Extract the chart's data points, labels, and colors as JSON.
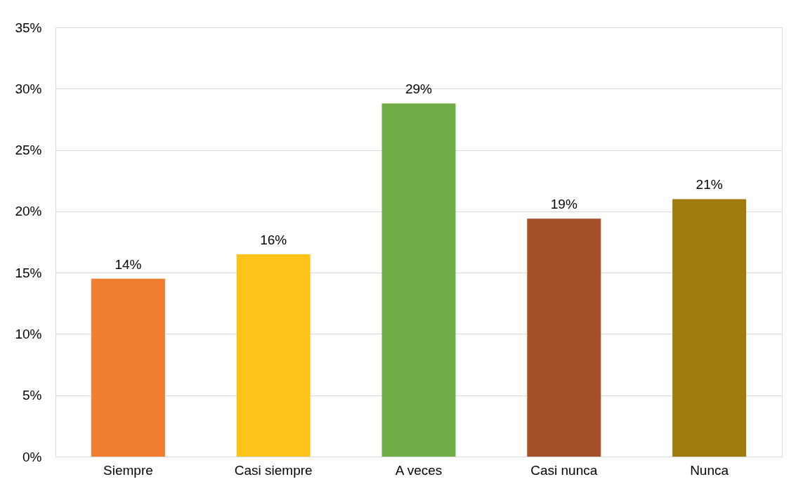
{
  "chart_data": {
    "type": "bar",
    "categories": [
      "Siempre",
      "Casi siempre",
      "A veces",
      "Casi nunca",
      "Nunca"
    ],
    "values": [
      14.5,
      16.5,
      28.8,
      19.4,
      21.0
    ],
    "colors": [
      "#f07f32",
      "#ffc41a",
      "#70ad47",
      "#a5502a",
      "#a07c10"
    ],
    "value_labels": [
      "14%",
      "16%",
      "29%",
      "19%",
      "21%"
    ],
    "ylim": [
      0,
      35
    ],
    "yticks": [
      {
        "value": 0,
        "label": "0%"
      },
      {
        "value": 5,
        "label": "5%"
      },
      {
        "value": 10,
        "label": "10%"
      },
      {
        "value": 15,
        "label": "15%"
      },
      {
        "value": 20,
        "label": "20%"
      },
      {
        "value": 25,
        "label": "25%"
      },
      {
        "value": 30,
        "label": "30%"
      },
      {
        "value": 35,
        "label": "35%"
      }
    ],
    "grid": "y"
  }
}
